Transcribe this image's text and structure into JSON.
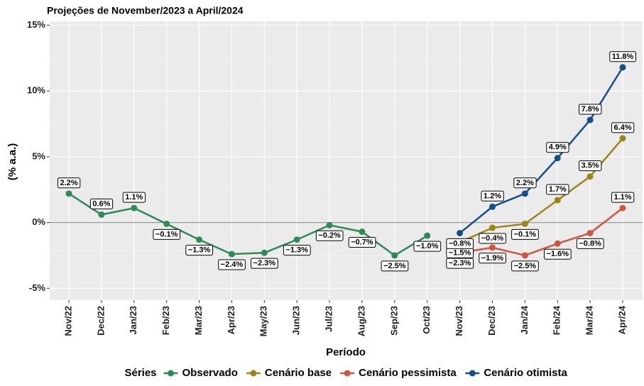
{
  "chart_data": {
    "type": "line",
    "title": "Projeções de November/2023 a April/2024",
    "x_label": "Período",
    "y_label": "(% a.a.)",
    "legend_title": "Séries",
    "categories": [
      "Nov/22",
      "Dec/22",
      "Jan/23",
      "Feb/23",
      "Mar/23",
      "Apr/23",
      "May/23",
      "Jun/23",
      "Jul/23",
      "Aug/23",
      "Sep/23",
      "Oct/23",
      "Nov/23",
      "Dec/23",
      "Jan/24",
      "Feb/24",
      "Mar/24",
      "Apr/24"
    ],
    "series": [
      {
        "name": "Observado",
        "color": "#2e8b57",
        "values": [
          2.2,
          0.6,
          1.1,
          -0.1,
          -1.3,
          -2.4,
          -2.3,
          -1.3,
          -0.2,
          -0.7,
          -2.5,
          -1.0,
          null,
          null,
          null,
          null,
          null,
          null
        ],
        "value_labels": [
          "2.2%",
          "0.6%",
          "1.1%",
          "−0.1%",
          "−1.3%",
          "−2.4%",
          "−2.3%",
          "−1.3%",
          "−0.2%",
          "−0.7%",
          "−2.5%",
          "−1.0%",
          null,
          null,
          null,
          null,
          null,
          null
        ]
      },
      {
        "name": "Cenário base",
        "color": "#9c8512",
        "values": [
          null,
          null,
          null,
          null,
          null,
          null,
          null,
          null,
          null,
          null,
          null,
          null,
          -1.5,
          -0.4,
          -0.1,
          1.7,
          3.5,
          6.4
        ],
        "value_labels": [
          null,
          null,
          null,
          null,
          null,
          null,
          null,
          null,
          null,
          null,
          null,
          null,
          "−1.5%",
          "−0.4%",
          "−0.1%",
          "1.7%",
          "3.5%",
          "6.4%"
        ]
      },
      {
        "name": "Cenário pessimista",
        "color": "#d0553f",
        "values": [
          null,
          null,
          null,
          null,
          null,
          null,
          null,
          null,
          null,
          null,
          null,
          null,
          -2.3,
          -1.9,
          -2.5,
          -1.6,
          -0.8,
          1.1
        ],
        "value_labels": [
          null,
          null,
          null,
          null,
          null,
          null,
          null,
          null,
          null,
          null,
          null,
          null,
          "−2.3%",
          "−1.9%",
          "−2.5%",
          "−1.6%",
          "−0.8%",
          "1.1%"
        ]
      },
      {
        "name": "Cenário otimista",
        "color": "#134f8c",
        "values": [
          null,
          null,
          null,
          null,
          null,
          null,
          null,
          null,
          null,
          null,
          null,
          null,
          -0.8,
          1.2,
          2.2,
          4.9,
          7.8,
          11.8
        ],
        "value_labels": [
          null,
          null,
          null,
          null,
          null,
          null,
          null,
          null,
          null,
          null,
          null,
          null,
          "−0.8%",
          "1.2%",
          "2.2%",
          "4.9%",
          "7.8%",
          "11.8%"
        ]
      }
    ],
    "ylim": [
      -5.9,
      15.3
    ],
    "yticks": [
      {
        "value": -5,
        "label": "-5%"
      },
      {
        "value": 0,
        "label": "0%"
      },
      {
        "value": 5,
        "label": "5%"
      },
      {
        "value": 10,
        "label": "10%"
      },
      {
        "value": 15,
        "label": "15%"
      }
    ],
    "grid": true,
    "legend_position": "bottom"
  }
}
